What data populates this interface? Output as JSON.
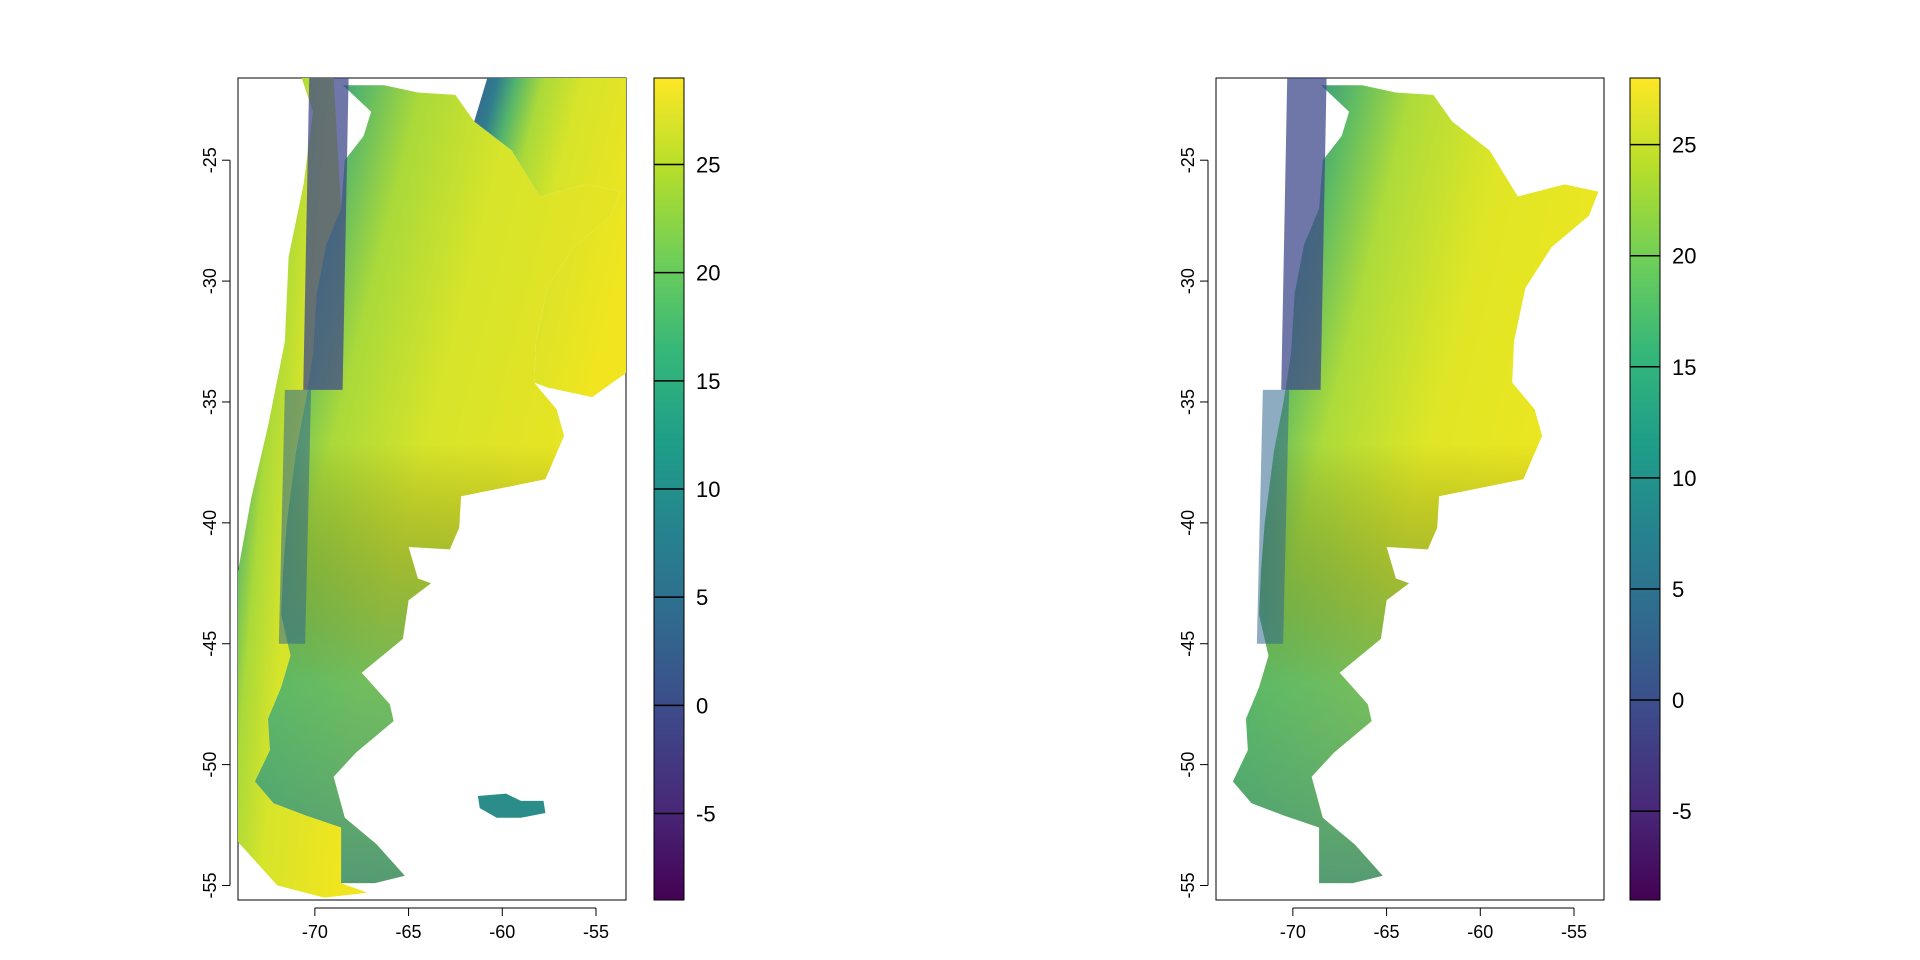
{
  "panels": [
    {
      "id": "raster-full-extent",
      "x_ticks": [
        "-70",
        "-65",
        "-60",
        "-55"
      ],
      "y_ticks": [
        "-25",
        "-30",
        "-35",
        "-40",
        "-45",
        "-50",
        "-55"
      ],
      "colorbar": {
        "ticks": [
          "25",
          "20",
          "15",
          "10",
          "5",
          "0",
          "-5"
        ],
        "tick_values": [
          25,
          20,
          15,
          10,
          5,
          0,
          -5
        ],
        "range": [
          -9,
          29
        ]
      }
    },
    {
      "id": "raster-masked-argentina",
      "x_ticks": [
        "-70",
        "-65",
        "-60",
        "-55"
      ],
      "y_ticks": [
        "-25",
        "-30",
        "-35",
        "-40",
        "-45",
        "-50",
        "-55"
      ],
      "colorbar": {
        "ticks": [
          "25",
          "20",
          "15",
          "10",
          "5",
          "0",
          "-5"
        ],
        "tick_values": [
          25,
          20,
          15,
          10,
          5,
          0,
          -5
        ],
        "range": [
          -9,
          28
        ]
      }
    }
  ],
  "map_extent": {
    "lon": [
      -74.1,
      -53.4
    ],
    "lat": [
      -55.6,
      -21.6
    ]
  },
  "colormap": "viridis",
  "colors": {
    "viridis": [
      "#440154",
      "#482878",
      "#3e4989",
      "#31688e",
      "#26828e",
      "#1f9e89",
      "#35b779",
      "#6ece58",
      "#b5de2b",
      "#fde725"
    ],
    "frame": "#000000",
    "background": "#ffffff"
  }
}
